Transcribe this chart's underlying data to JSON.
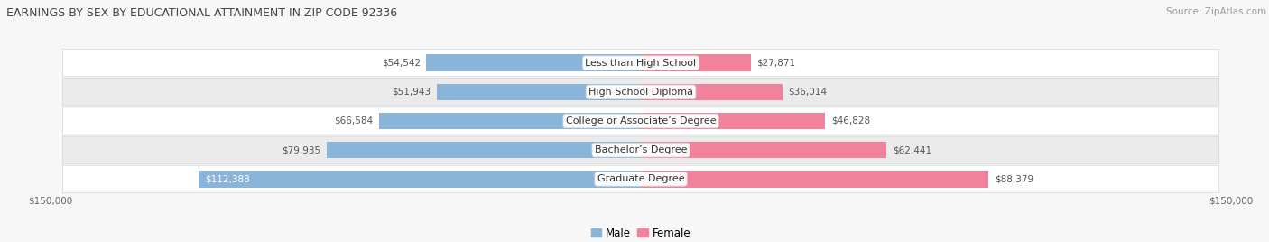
{
  "title": "EARNINGS BY SEX BY EDUCATIONAL ATTAINMENT IN ZIP CODE 92336",
  "source": "Source: ZipAtlas.com",
  "categories": [
    "Less than High School",
    "High School Diploma",
    "College or Associate’s Degree",
    "Bachelor’s Degree",
    "Graduate Degree"
  ],
  "male_values": [
    54542,
    51943,
    66584,
    79935,
    112388
  ],
  "female_values": [
    27871,
    36014,
    46828,
    62441,
    88379
  ],
  "male_color": "#8ab4d8",
  "female_color": "#f0829e",
  "max_val": 150000,
  "male_label": "Male",
  "female_label": "Female",
  "bar_height": 0.58,
  "row_bg_colors": [
    "#ffffff",
    "#ebebeb"
  ],
  "background_color": "#f7f7f7",
  "axis_label_left": "$150,000",
  "axis_label_right": "$150,000",
  "title_fontsize": 9.0,
  "source_fontsize": 7.5,
  "value_fontsize": 7.5,
  "cat_fontsize": 8.0,
  "legend_fontsize": 8.5
}
